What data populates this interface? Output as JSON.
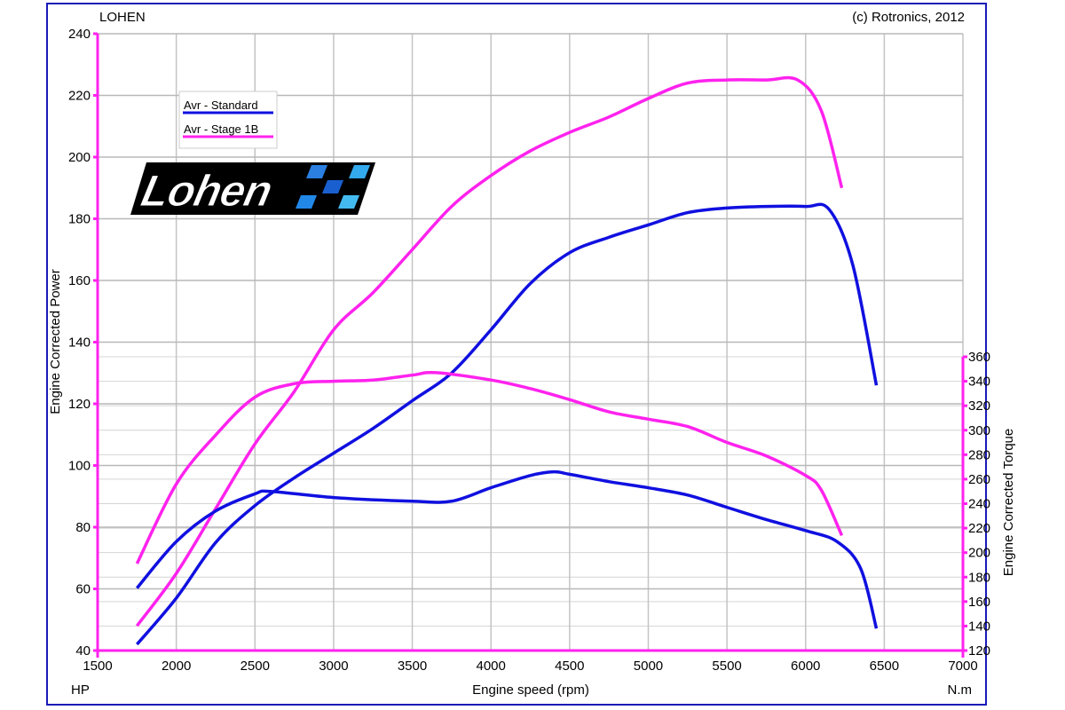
{
  "header": {
    "left": "LOHEN",
    "right": "(c) Rotronics, 2012"
  },
  "logo": {
    "text": "Lohen"
  },
  "chart_data": {
    "type": "line",
    "xlabel": "Engine speed (rpm)",
    "ylabel_left": "Engine Corrected Power",
    "ylabel_right": "Engine Corrected Torque",
    "unit_left": "HP",
    "unit_right": "N.m",
    "xlim": [
      1500,
      7000
    ],
    "ylim_left": [
      40,
      240
    ],
    "ylim_right": [
      120,
      360
    ],
    "xticks": [
      1500,
      2000,
      2500,
      3000,
      3500,
      4000,
      4500,
      5000,
      5500,
      6000,
      6500,
      7000
    ],
    "yticks_left": [
      40,
      60,
      80,
      100,
      120,
      140,
      160,
      180,
      200,
      220,
      240
    ],
    "yticks_right": [
      120,
      140,
      160,
      180,
      200,
      220,
      240,
      260,
      280,
      300,
      320,
      340,
      360
    ],
    "grid": true,
    "legend_position": "top-left",
    "legend": [
      {
        "name": "Avr - Standard",
        "color": "#1010e0"
      },
      {
        "name": "Avr - Stage 1B",
        "color": "#ff22ee"
      }
    ],
    "series": [
      {
        "name": "Avr - Standard",
        "quantity": "power",
        "axis": "left",
        "color": "#1010e0",
        "x": [
          1750,
          2000,
          2250,
          2500,
          2750,
          3000,
          3250,
          3500,
          3750,
          4000,
          4250,
          4500,
          4750,
          5000,
          5250,
          5500,
          5750,
          6000,
          6150,
          6300,
          6450
        ],
        "y": [
          42,
          57,
          75,
          87,
          96,
          104,
          112,
          121,
          130,
          144,
          159,
          169,
          174,
          178,
          182,
          183.5,
          184,
          184,
          183,
          165,
          126
        ]
      },
      {
        "name": "Avr - Stage 1B",
        "quantity": "power",
        "axis": "left",
        "color": "#ff22ee",
        "x": [
          1750,
          2000,
          2250,
          2500,
          2750,
          3000,
          3250,
          3500,
          3750,
          4000,
          4250,
          4500,
          4750,
          5000,
          5250,
          5500,
          5750,
          5950,
          6100,
          6230
        ],
        "y": [
          48,
          65,
          86,
          107,
          124,
          144,
          156,
          170,
          184,
          194,
          202,
          208,
          213,
          219,
          224,
          225,
          225,
          225,
          215,
          190
        ]
      },
      {
        "name": "Avr - Standard",
        "quantity": "torque",
        "axis": "right",
        "color": "#1010e0",
        "x": [
          1750,
          2000,
          2250,
          2500,
          2600,
          3000,
          3500,
          3750,
          4000,
          4250,
          4400,
          4500,
          4750,
          5000,
          5250,
          5500,
          5750,
          6000,
          6200,
          6350,
          6450
        ],
        "y": [
          171,
          209,
          234,
          248,
          250,
          245,
          242,
          242,
          253,
          263,
          266,
          264,
          258,
          253,
          247,
          237,
          227,
          218,
          209,
          187,
          138
        ]
      },
      {
        "name": "Avr - Stage 1B",
        "quantity": "torque",
        "axis": "right",
        "color": "#ff22ee",
        "x": [
          1750,
          2000,
          2250,
          2500,
          2750,
          3000,
          3250,
          3500,
          3650,
          4000,
          4250,
          4500,
          4750,
          5000,
          5250,
          5500,
          5750,
          6000,
          6100,
          6230
        ],
        "y": [
          191,
          256,
          296,
          327,
          338,
          340,
          341,
          345,
          347,
          341,
          334,
          325,
          315,
          309,
          303,
          290,
          279,
          263,
          251,
          214
        ]
      }
    ]
  }
}
